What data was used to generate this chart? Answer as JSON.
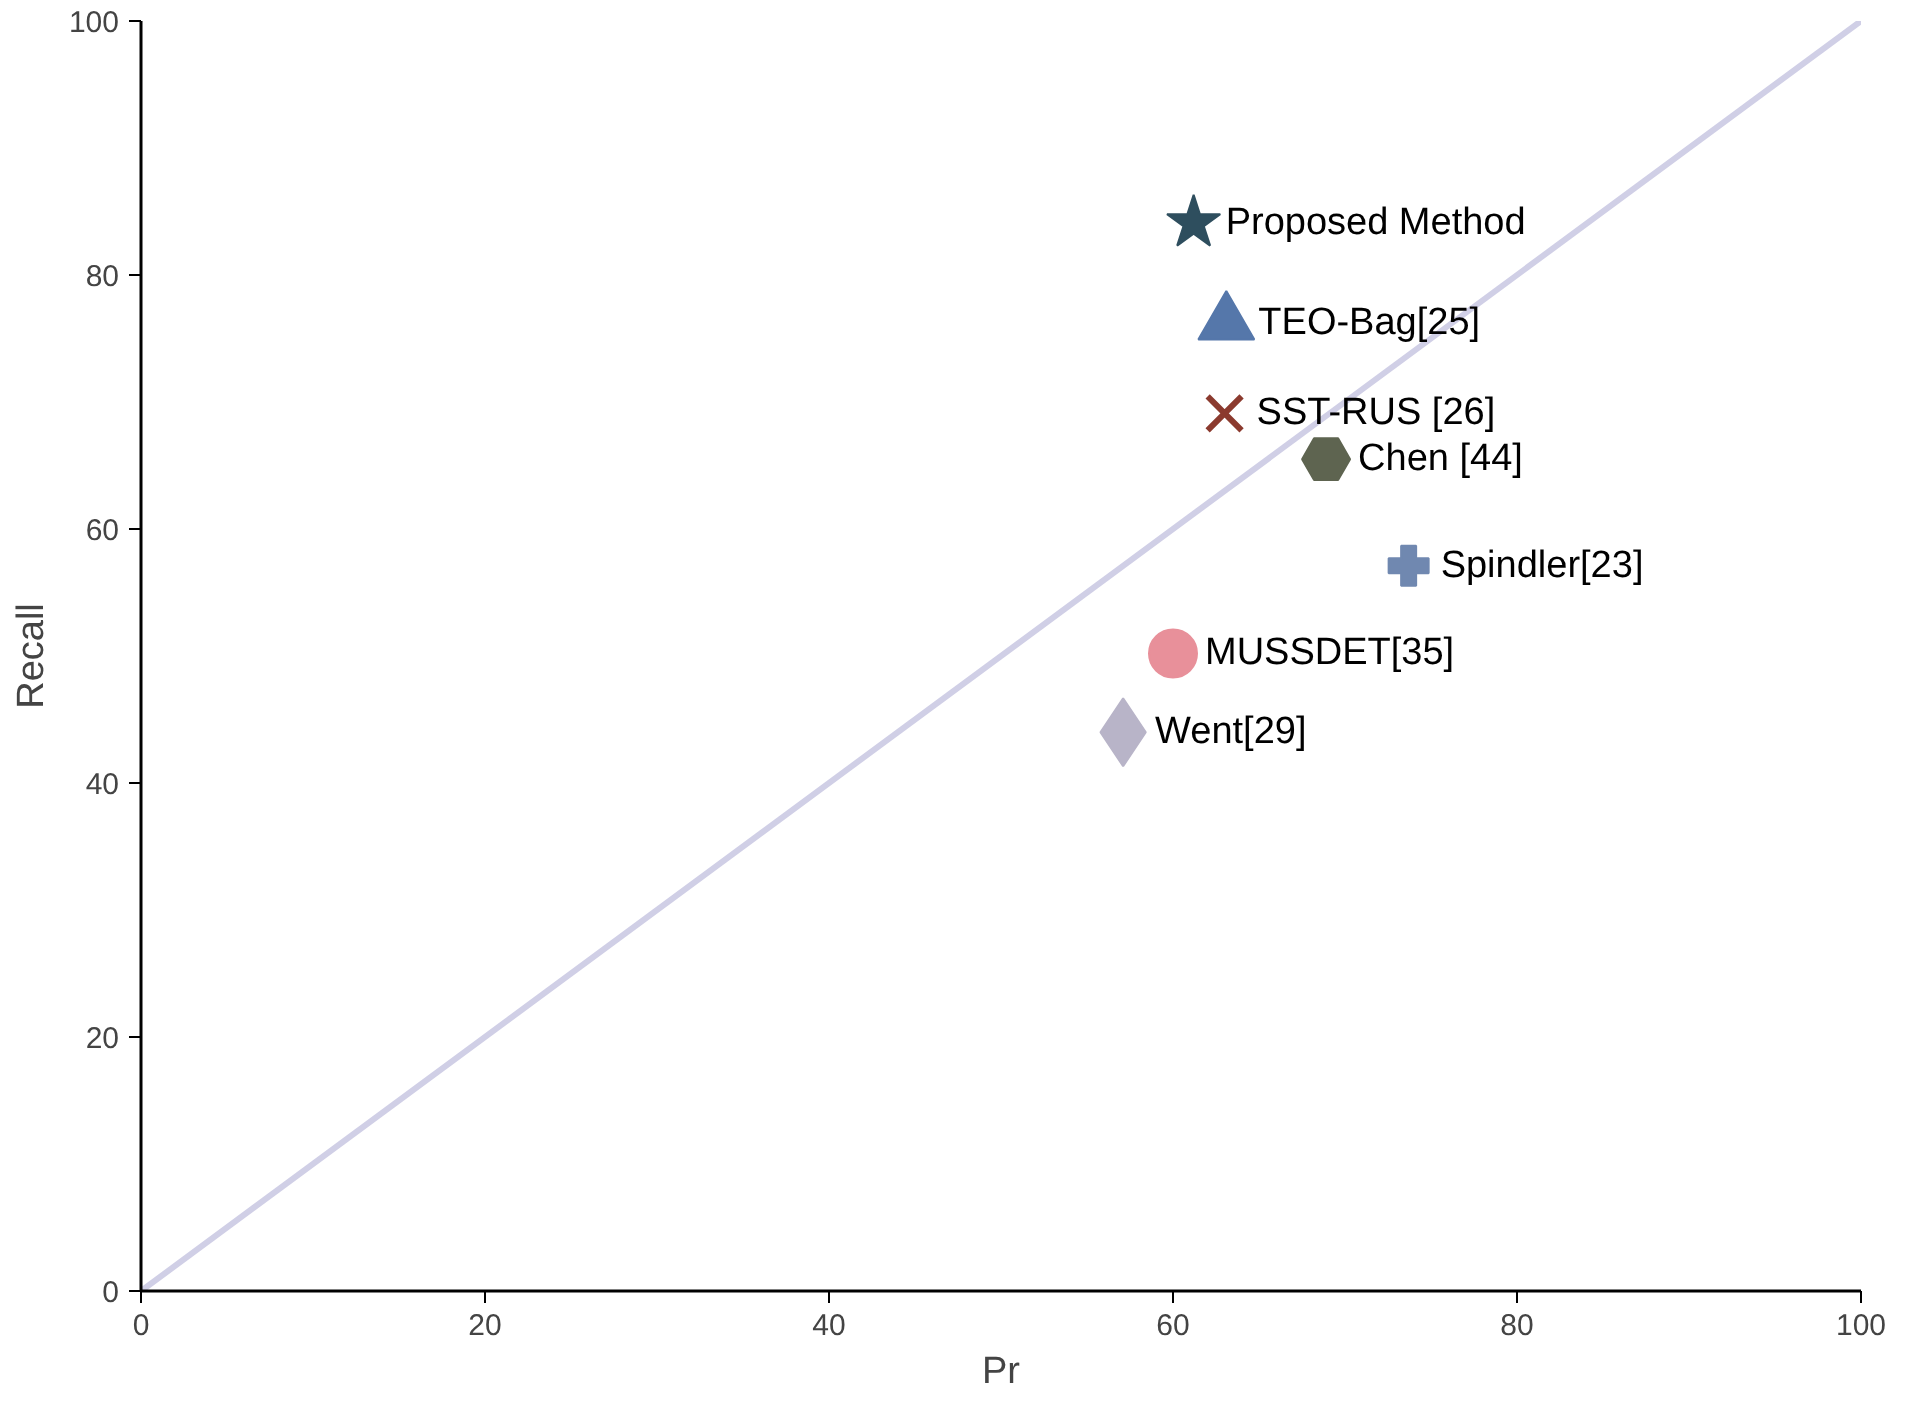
{
  "chart_data": {
    "type": "scatter",
    "xlabel": "Pr",
    "ylabel": "Recall",
    "xlim": [
      0,
      100
    ],
    "ylim": [
      0,
      100
    ],
    "xticks": [
      0,
      20,
      40,
      60,
      80,
      100
    ],
    "yticks": [
      0,
      20,
      40,
      60,
      80,
      100
    ],
    "grid": false,
    "series": [
      {
        "type": "line",
        "color": "#d0cfe6",
        "x": [
          0,
          100
        ],
        "values": [
          0,
          100
        ]
      },
      {
        "name": "Proposed Method",
        "color": "#2e4e5e",
        "x": [
          61.2
        ],
        "values": [
          84.1
        ],
        "marker": "star"
      },
      {
        "name": "TEO-Bag[25]",
        "color": "#5577aa",
        "x": [
          63.1
        ],
        "values": [
          76.2
        ],
        "marker": "triangle"
      },
      {
        "name": "SST-RUS [26]",
        "color": "#8b3a2e",
        "x": [
          63.0
        ],
        "values": [
          69.1
        ],
        "marker": "x"
      },
      {
        "name": "Chen [44]",
        "color": "#5e6450",
        "x": [
          68.9
        ],
        "values": [
          65.5
        ]
      },
      {
        "name": "Spindler[23]",
        "color": "#7088b0",
        "x": [
          73.7
        ],
        "values": [
          57.1
        ],
        "marker": "cross"
      },
      {
        "name": "MUSSDET[35]",
        "color": "#e8909a",
        "x": [
          60.0
        ],
        "values": [
          50.2
        ],
        "marker": "circle"
      },
      {
        "name": "Went[29]",
        "color": "#b8b4c8",
        "x": [
          57.1
        ],
        "values": [
          44.0
        ],
        "marker": "diamond"
      }
    ]
  }
}
